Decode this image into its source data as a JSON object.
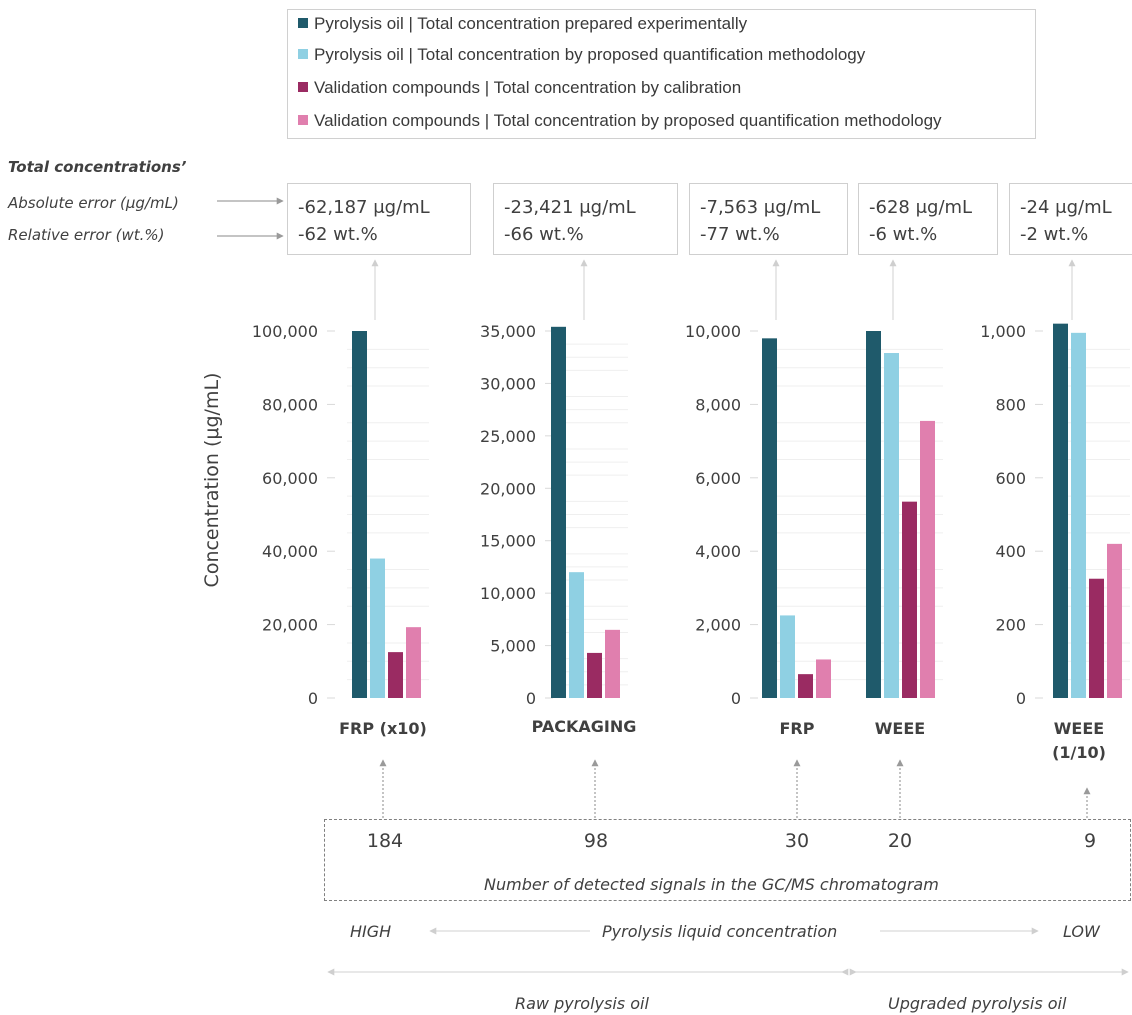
{
  "legend": {
    "items": [
      {
        "label": "Pyrolysis oil | Total concentration prepared experimentally",
        "color": "#1f5a6b"
      },
      {
        "label": "Pyrolysis oil | Total concentration by proposed quantification methodology",
        "color": "#8fd0e3"
      },
      {
        "label": "Validation compounds | Total concentration by calibration",
        "color": "#9a2b62"
      },
      {
        "label": "Validation compounds | Total concentration by proposed quantification methodology",
        "color": "#e07fae"
      }
    ]
  },
  "errors": {
    "heading": "Total concentrations’",
    "abs_label": "Absolute error (μg/mL)",
    "rel_label": "Relative error (wt.%)",
    "boxes": [
      {
        "abs": "-62,187 μg/mL",
        "rel": "-62 wt.%"
      },
      {
        "abs": "-23,421 μg/mL",
        "rel": "-66 wt.%"
      },
      {
        "abs": "-7,563 μg/mL",
        "rel": "-77 wt.%"
      },
      {
        "abs": "-628 μg/mL",
        "rel": "-6 wt.%"
      },
      {
        "abs": "-24 μg/mL",
        "rel": "-2 wt.%"
      }
    ]
  },
  "chart_data": {
    "type": "bar",
    "ylabel": "Concentration (μg/mL)",
    "colors": [
      "#1f5a6b",
      "#8fd0e3",
      "#9a2b62",
      "#e07fae"
    ],
    "panels": [
      {
        "ymax": 100000,
        "ticks": [
          "0",
          "20,000",
          "40,000",
          "60,000",
          "80,000",
          "100,000"
        ],
        "tick_values": [
          0,
          20000,
          40000,
          60000,
          80000,
          100000
        ],
        "groups": [
          {
            "category": "FRP (x10)",
            "values": [
              100000,
              38000,
              12500,
              19300
            ]
          }
        ]
      },
      {
        "ymax": 35000,
        "ticks": [
          "0",
          "5,000",
          "10,000",
          "15,000",
          "20,000",
          "25,000",
          "30,000",
          "35,000"
        ],
        "tick_values": [
          0,
          5000,
          10000,
          15000,
          20000,
          25000,
          30000,
          35000
        ],
        "groups": [
          {
            "category": "PACKAGING",
            "values": [
              35400,
              12000,
              4300,
              6500
            ]
          }
        ]
      },
      {
        "ymax": 10000,
        "ticks": [
          "0",
          "2,000",
          "4,000",
          "6,000",
          "8,000",
          "10,000"
        ],
        "tick_values": [
          0,
          2000,
          4000,
          6000,
          8000,
          10000
        ],
        "groups": [
          {
            "category": "FRP",
            "values": [
              9800,
              2250,
              650,
              1050
            ]
          },
          {
            "category": "WEEE",
            "values": [
              10000,
              9400,
              5350,
              7550
            ]
          }
        ]
      },
      {
        "ymax": 1000,
        "ticks": [
          "0",
          "200",
          "400",
          "600",
          "800",
          "1,000"
        ],
        "tick_values": [
          0,
          200,
          400,
          600,
          800,
          1000
        ],
        "groups": [
          {
            "category": "WEEE (1/10)",
            "values": [
              1020,
              995,
              325,
              420
            ]
          }
        ]
      }
    ]
  },
  "signals": {
    "counts": [
      "184",
      "98",
      "30",
      "20",
      "9"
    ],
    "caption": "Number of detected signals in the GC/MS chromatogram"
  },
  "concentration_scale": {
    "high": "HIGH",
    "label": "Pyrolysis liquid concentration",
    "low": "LOW"
  },
  "oil_types": {
    "raw": "Raw pyrolysis oil",
    "upgraded": "Upgraded pyrolysis oil"
  }
}
